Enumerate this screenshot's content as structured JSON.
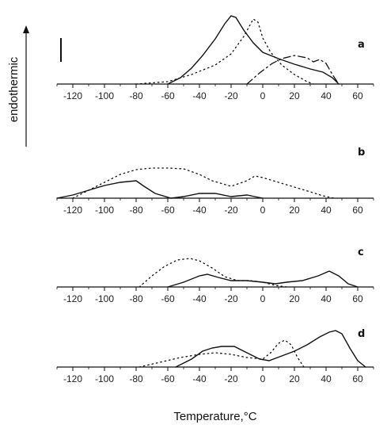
{
  "chart_data": {
    "type": "line",
    "xlabel": "Temperature,°C",
    "ylabel": "endothermic",
    "xlim": [
      -130,
      70
    ],
    "ticks": [
      -120,
      -100,
      -80,
      -60,
      -40,
      -20,
      0,
      20,
      40,
      60
    ],
    "tick_labels": [
      "-120",
      "-100",
      "-80",
      "-60",
      "-40",
      "-20",
      "0",
      "20",
      "40",
      "60"
    ],
    "grid": false,
    "panels": [
      {
        "label": "a",
        "scale_bar": true,
        "series": [
          {
            "style": "dotted",
            "points": [
              [
                -80,
                0
              ],
              [
                -60,
                3
              ],
              [
                -45,
                12
              ],
              [
                -30,
                24
              ],
              [
                -20,
                38
              ],
              [
                -12,
                60
              ],
              [
                -6,
                82
              ],
              [
                -3,
                78
              ],
              [
                0,
                58
              ],
              [
                5,
                40
              ],
              [
                12,
                24
              ],
              [
                20,
                12
              ],
              [
                28,
                3
              ],
              [
                32,
                0
              ]
            ]
          },
          {
            "style": "solid",
            "points": [
              [
                -60,
                0
              ],
              [
                -52,
                8
              ],
              [
                -45,
                20
              ],
              [
                -38,
                36
              ],
              [
                -30,
                57
              ],
              [
                -24,
                76
              ],
              [
                -20,
                86
              ],
              [
                -17,
                84
              ],
              [
                -12,
                68
              ],
              [
                -6,
                52
              ],
              [
                0,
                40
              ],
              [
                10,
                32
              ],
              [
                20,
                25
              ],
              [
                30,
                19
              ],
              [
                38,
                15
              ],
              [
                44,
                8
              ],
              [
                48,
                0
              ]
            ]
          },
          {
            "style": "dashdot",
            "points": [
              [
                -10,
                0
              ],
              [
                -2,
                14
              ],
              [
                6,
                26
              ],
              [
                12,
                32
              ],
              [
                20,
                36
              ],
              [
                28,
                33
              ],
              [
                32,
                28
              ],
              [
                36,
                31
              ],
              [
                40,
                26
              ],
              [
                44,
                12
              ],
              [
                48,
                0
              ]
            ]
          }
        ]
      },
      {
        "label": "b",
        "series": [
          {
            "style": "dotted",
            "points": [
              [
                -120,
                0
              ],
              [
                -110,
                10
              ],
              [
                -100,
                20
              ],
              [
                -90,
                30
              ],
              [
                -80,
                36
              ],
              [
                -70,
                38
              ],
              [
                -60,
                38
              ],
              [
                -50,
                37
              ],
              [
                -40,
                30
              ],
              [
                -32,
                22
              ],
              [
                -20,
                15
              ],
              [
                -10,
                22
              ],
              [
                -5,
                28
              ],
              [
                0,
                26
              ],
              [
                10,
                20
              ],
              [
                20,
                14
              ],
              [
                30,
                8
              ],
              [
                38,
                3
              ],
              [
                45,
                0
              ]
            ]
          },
          {
            "style": "solid",
            "points": [
              [
                -130,
                0
              ],
              [
                -120,
                4
              ],
              [
                -110,
                10
              ],
              [
                -100,
                16
              ],
              [
                -90,
                20
              ],
              [
                -80,
                22
              ],
              [
                -75,
                15
              ],
              [
                -68,
                6
              ],
              [
                -58,
                0
              ],
              [
                -50,
                2
              ],
              [
                -40,
                6
              ],
              [
                -30,
                6
              ],
              [
                -20,
                2
              ],
              [
                -10,
                4
              ],
              [
                -5,
                2
              ],
              [
                0,
                0
              ]
            ]
          }
        ]
      },
      {
        "label": "c",
        "series": [
          {
            "style": "dotted",
            "points": [
              [
                -78,
                0
              ],
              [
                -70,
                14
              ],
              [
                -62,
                26
              ],
              [
                -54,
                34
              ],
              [
                -46,
                36
              ],
              [
                -40,
                33
              ],
              [
                -32,
                24
              ],
              [
                -24,
                13
              ],
              [
                -16,
                8
              ],
              [
                -8,
                8
              ],
              [
                0,
                6
              ],
              [
                8,
                2
              ],
              [
                15,
                0
              ]
            ]
          },
          {
            "style": "solid",
            "points": [
              [
                -60,
                0
              ],
              [
                -50,
                6
              ],
              [
                -40,
                14
              ],
              [
                -35,
                16
              ],
              [
                -28,
                12
              ],
              [
                -20,
                8
              ],
              [
                -10,
                8
              ],
              [
                0,
                6
              ],
              [
                8,
                4
              ],
              [
                15,
                6
              ],
              [
                25,
                8
              ],
              [
                35,
                14
              ],
              [
                42,
                20
              ],
              [
                48,
                14
              ],
              [
                54,
                4
              ],
              [
                60,
                0
              ]
            ]
          }
        ]
      },
      {
        "label": "d",
        "series": [
          {
            "style": "dotted",
            "points": [
              [
                -78,
                0
              ],
              [
                -65,
                6
              ],
              [
                -52,
                12
              ],
              [
                -40,
                16
              ],
              [
                -30,
                18
              ],
              [
                -20,
                16
              ],
              [
                -10,
                12
              ],
              [
                0,
                10
              ],
              [
                5,
                18
              ],
              [
                10,
                30
              ],
              [
                14,
                34
              ],
              [
                18,
                28
              ],
              [
                22,
                12
              ],
              [
                26,
                0
              ]
            ]
          },
          {
            "style": "solid",
            "points": [
              [
                -55,
                0
              ],
              [
                -45,
                10
              ],
              [
                -38,
                20
              ],
              [
                -32,
                24
              ],
              [
                -26,
                26
              ],
              [
                -18,
                26
              ],
              [
                -10,
                18
              ],
              [
                -2,
                10
              ],
              [
                4,
                8
              ],
              [
                12,
                14
              ],
              [
                20,
                20
              ],
              [
                28,
                28
              ],
              [
                36,
                38
              ],
              [
                42,
                44
              ],
              [
                46,
                46
              ],
              [
                50,
                42
              ],
              [
                55,
                24
              ],
              [
                60,
                8
              ],
              [
                65,
                0
              ]
            ]
          }
        ]
      }
    ]
  }
}
